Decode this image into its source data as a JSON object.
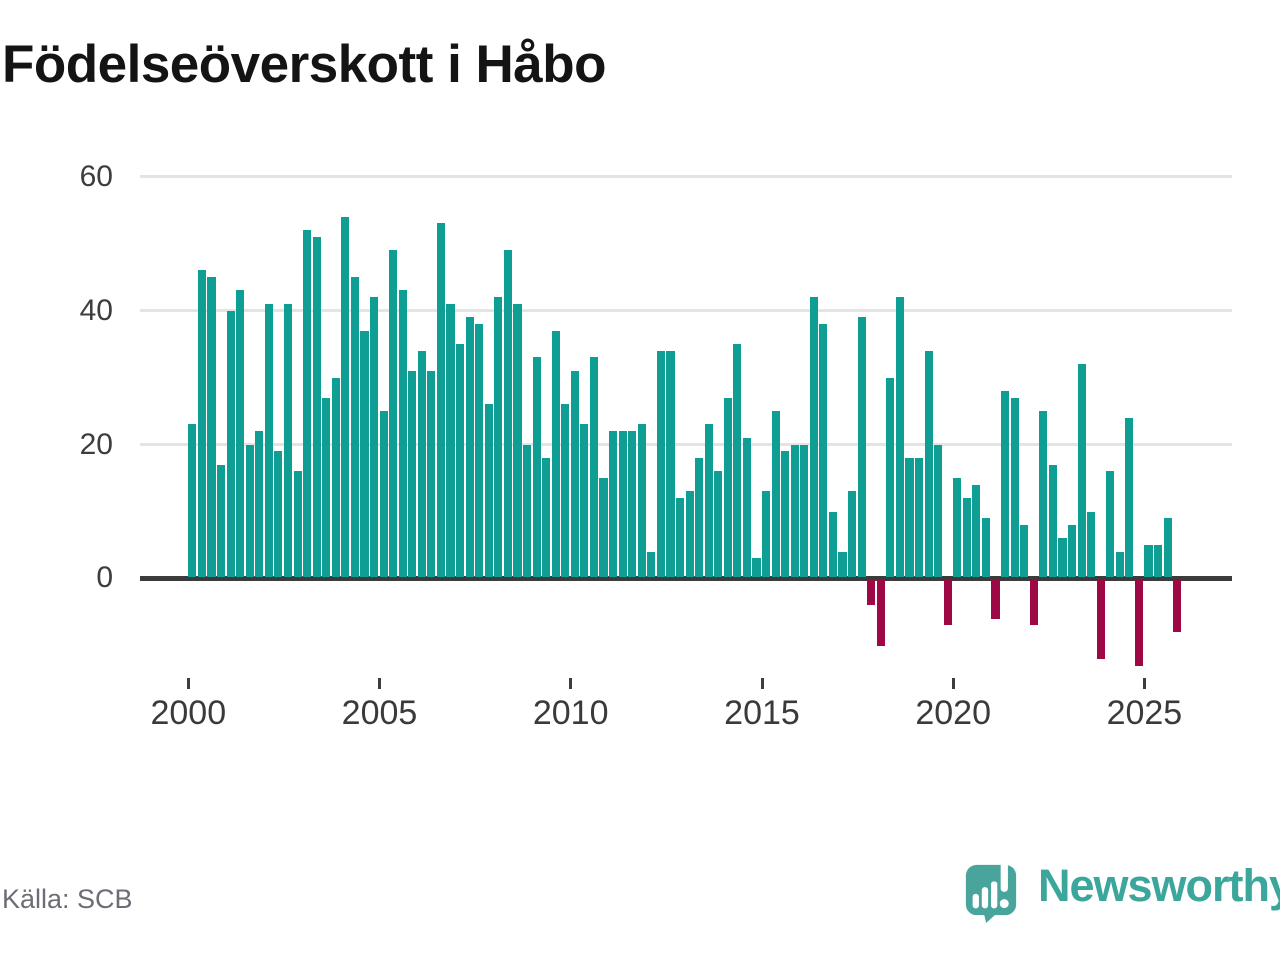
{
  "title": "Födelseöverskott i Håbo",
  "source": "Källa: SCB",
  "logo": {
    "text": "Newsworthy"
  },
  "y_axis": {
    "labels": [
      "60",
      "40",
      "20",
      "0"
    ],
    "values": [
      60,
      40,
      20,
      0
    ]
  },
  "x_axis": {
    "labels": [
      "2000",
      "2005",
      "2010",
      "2015",
      "2020",
      "2025"
    ]
  },
  "chart_data": {
    "type": "bar",
    "title": "Födelseöverskott i Håbo",
    "source": "Källa: SCB",
    "frequency": "quarterly",
    "x_start": "2000 Q1",
    "x_end": "2025 Q4",
    "xlabel": "",
    "ylabel": "",
    "ylim": [
      -15,
      62
    ],
    "grid": "horizontal",
    "y_ticks": [
      0,
      20,
      40,
      60
    ],
    "x_tick_years": [
      2000,
      2005,
      2010,
      2015,
      2020,
      2025
    ],
    "positive_color": "#0f9e94",
    "negative_color": "#9e0945",
    "values": [
      23,
      46,
      45,
      17,
      40,
      43,
      20,
      22,
      41,
      19,
      41,
      16,
      52,
      51,
      27,
      30,
      54,
      45,
      37,
      42,
      25,
      49,
      43,
      31,
      34,
      31,
      53,
      41,
      35,
      39,
      38,
      26,
      42,
      49,
      41,
      20,
      33,
      18,
      37,
      26,
      31,
      23,
      33,
      15,
      22,
      22,
      22,
      23,
      4,
      34,
      34,
      12,
      13,
      18,
      23,
      16,
      27,
      35,
      21,
      3,
      13,
      25,
      19,
      20,
      20,
      42,
      38,
      10,
      4,
      13,
      39,
      -4,
      -10,
      30,
      42,
      18,
      18,
      34,
      20,
      -7,
      15,
      12,
      14,
      9,
      -6,
      28,
      27,
      8,
      -7,
      25,
      17,
      6,
      8,
      32,
      10,
      -12,
      16,
      4,
      24,
      -13,
      5,
      5,
      9,
      -8
    ]
  }
}
